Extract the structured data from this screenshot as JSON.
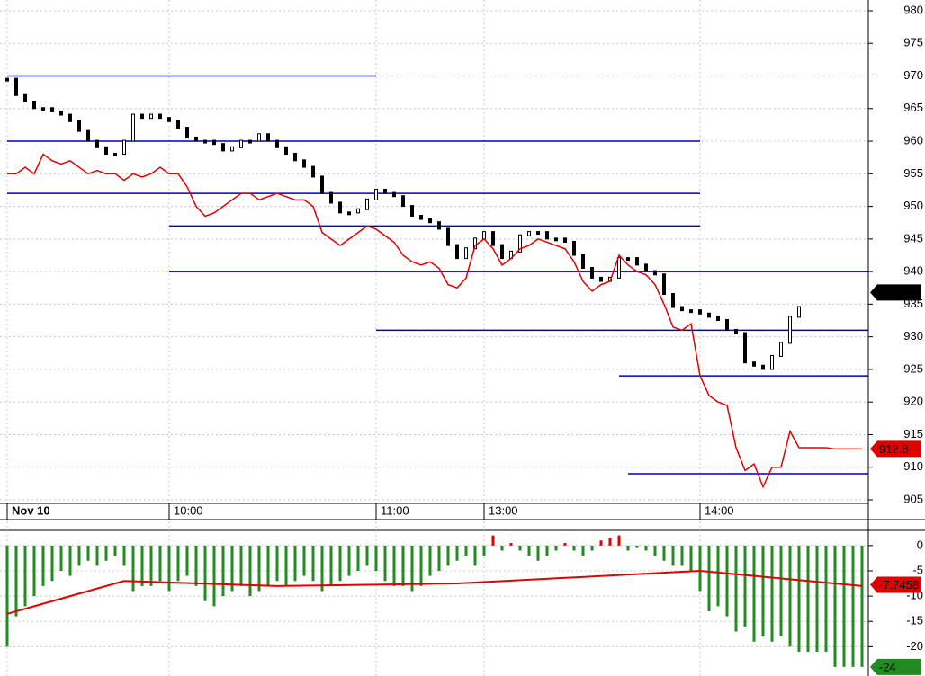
{
  "chart_data": [
    {
      "type": "line",
      "xlim": [
        -0.8,
        95.7
      ],
      "xticks": [
        {
          "value": 0,
          "label": "Nov 10"
        },
        {
          "value": 18,
          "label": "10:00"
        },
        {
          "value": 41,
          "label": "11:00"
        },
        {
          "value": 53,
          "label": "13:00"
        },
        {
          "value": 77,
          "label": "14:00"
        }
      ],
      "ylim": [
        904.45,
        981.65
      ],
      "yticks": [
        905,
        910,
        915,
        920,
        925,
        930,
        935,
        940,
        945,
        950,
        955,
        960,
        965,
        970,
        975,
        980
      ],
      "grid": true,
      "series": [
        {
          "color": "#000000",
          "style": "candle",
          "values": [
            969.5,
            967,
            966,
            965,
            965,
            964.5,
            964,
            963,
            961.5,
            960,
            959,
            958,
            958,
            960,
            964,
            963.5,
            964,
            963.5,
            963,
            962,
            960.5,
            960,
            960,
            959.5,
            958.5,
            959,
            960,
            960,
            961,
            960,
            959,
            958,
            957,
            956,
            954.5,
            952,
            950.5,
            949,
            949,
            949.5,
            951,
            952.5,
            952,
            951.5,
            950,
            948.5,
            948,
            947.5,
            946.5,
            944,
            942,
            943.5,
            945,
            946,
            944,
            942,
            943,
            945.5,
            946,
            946,
            945,
            945,
            944.5,
            942.5,
            940.5,
            939,
            938.5,
            939,
            942,
            942,
            941,
            940,
            939.5,
            936.5,
            934.5,
            934,
            934,
            933.5,
            933,
            932.5,
            931,
            930.5,
            926,
            925.5,
            925,
            927,
            929,
            933,
            934.5,
            null,
            null,
            null,
            null,
            null,
            null,
            null
          ]
        },
        {
          "color": "#e00000",
          "style": "line",
          "values": [
            955,
            955,
            956,
            955,
            958,
            957,
            956.5,
            957,
            956,
            955,
            955.5,
            955,
            955,
            954,
            955,
            954.5,
            955,
            956,
            955,
            955,
            953,
            950,
            948.5,
            949,
            950,
            951,
            952,
            952,
            951,
            951.5,
            952,
            951.5,
            951,
            951,
            950,
            946,
            945,
            944,
            945,
            946,
            947,
            946.5,
            945.5,
            944.5,
            942.5,
            941.5,
            941,
            941.5,
            940.5,
            938,
            937.5,
            939,
            944,
            945,
            943.5,
            941,
            942,
            943.5,
            944,
            945,
            944.5,
            944,
            943.5,
            941.5,
            938.5,
            937,
            938,
            938.5,
            942.5,
            941,
            940,
            939.5,
            938,
            935,
            931.5,
            931,
            932,
            924,
            921,
            920,
            919.5,
            913,
            909.5,
            910.5,
            907,
            910,
            910,
            915.5,
            913,
            913,
            913,
            913,
            912.8,
            912.8,
            912.8,
            912.8
          ]
        }
      ],
      "level_color": "#0000c0",
      "levels": [
        {
          "value": 970,
          "x": [
            0,
            41
          ]
        },
        {
          "value": 960,
          "x": [
            0,
            77
          ]
        },
        {
          "value": 952,
          "x": [
            0,
            77
          ]
        },
        {
          "value": 947,
          "x": [
            18,
            77
          ]
        },
        {
          "value": 940,
          "x": [
            18,
            95.7
          ]
        },
        {
          "value": 931,
          "x": [
            41,
            95.7
          ]
        },
        {
          "value": 924,
          "x": [
            68,
            95.7
          ]
        },
        {
          "value": 909,
          "x": [
            69,
            95.7
          ]
        }
      ],
      "markers": [
        {
          "value": 936.8,
          "color": "#000000"
        },
        {
          "value": 912.8,
          "color": "#e00000"
        }
      ]
    },
    {
      "type": "bar",
      "xlim": [
        -0.8,
        95.7
      ],
      "ylim": [
        -25.8,
        3
      ],
      "yticks": [
        0,
        -5,
        -10,
        -15,
        -20
      ],
      "grid": true,
      "positive_color": "#e00000",
      "negative_color": "#228b22",
      "values": [
        -20,
        -14,
        -12,
        -10,
        -8,
        -7,
        -5,
        -6,
        -4,
        -3,
        -4,
        -3,
        -2,
        -4,
        -9,
        -8,
        -8,
        -7,
        -9,
        -7,
        -6,
        -8,
        -11,
        -12,
        -10,
        -9,
        -8,
        -10,
        -9,
        -8,
        -7,
        -8,
        -7,
        -6,
        -7,
        -9,
        -8,
        -7,
        -6,
        -5,
        -4,
        -5,
        -7,
        -8,
        -8,
        -9,
        -8,
        -6,
        -5,
        -4,
        -3,
        -2,
        -4,
        -2,
        2,
        -1,
        0.5,
        -1,
        -2,
        -3,
        -2,
        -1,
        0.5,
        -1,
        -2,
        -1,
        1,
        1.5,
        2,
        -1,
        -0.5,
        -1,
        -2,
        -3,
        -4,
        -4,
        -5,
        -9,
        -13,
        -12,
        -14,
        -17,
        -16,
        -19,
        -18,
        -19,
        -18,
        -20,
        -21,
        -21,
        -21,
        -21,
        -24,
        -24,
        -24,
        -24
      ],
      "line": {
        "color": "#e00000",
        "x": [
          0,
          5,
          13,
          30,
          50,
          77,
          95
        ],
        "values": [
          -13.5,
          -11,
          -7,
          -8,
          -7.5,
          -5,
          -8
        ]
      },
      "markers": [
        {
          "value": -7.7458,
          "color": "#e00000"
        },
        {
          "value": -24,
          "color": "#228b22"
        }
      ]
    }
  ]
}
